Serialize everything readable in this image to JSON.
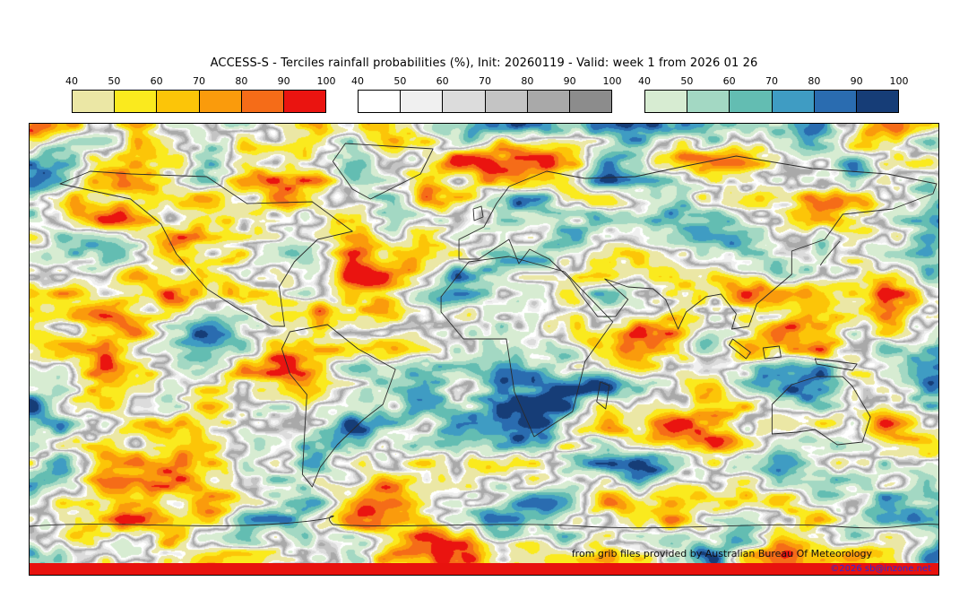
{
  "title": "ACCESS-S - Terciles rainfall probabilities (%), Init: 20260119 - Valid: week 1 from 2026 01 26",
  "colorbars": [
    {
      "name": "dry-tercile-probability",
      "ticks": [
        "40",
        "50",
        "60",
        "70",
        "80",
        "90",
        "100"
      ],
      "colors": [
        "#ebe7a5",
        "#faea1e",
        "#fcc508",
        "#fa9b0c",
        "#f56c18",
        "#ea1410"
      ]
    },
    {
      "name": "middle-tercile-probability",
      "ticks": [
        "40",
        "50",
        "60",
        "70",
        "80",
        "90",
        "100"
      ],
      "colors": [
        "#ffffff",
        "#f0f0f0",
        "#dcdcdc",
        "#c4c4c4",
        "#a9a9a9",
        "#8c8c8c"
      ]
    },
    {
      "name": "wet-tercile-probability",
      "ticks": [
        "40",
        "50",
        "60",
        "70",
        "80",
        "90",
        "100"
      ],
      "colors": [
        "#d7ecd2",
        "#a3d8c3",
        "#63bdb2",
        "#3f9cc3",
        "#2a6cb0",
        "#163d77"
      ]
    }
  ],
  "map": {
    "credit": "from grib files provided by Australian Bureau Of Meteorology",
    "copyright": "©2026 sb@inzone.net",
    "copyright_band_color": "#e8120e",
    "copyright_text_color": "#2b2bd5",
    "coastline_color": "#2a2a2a"
  }
}
